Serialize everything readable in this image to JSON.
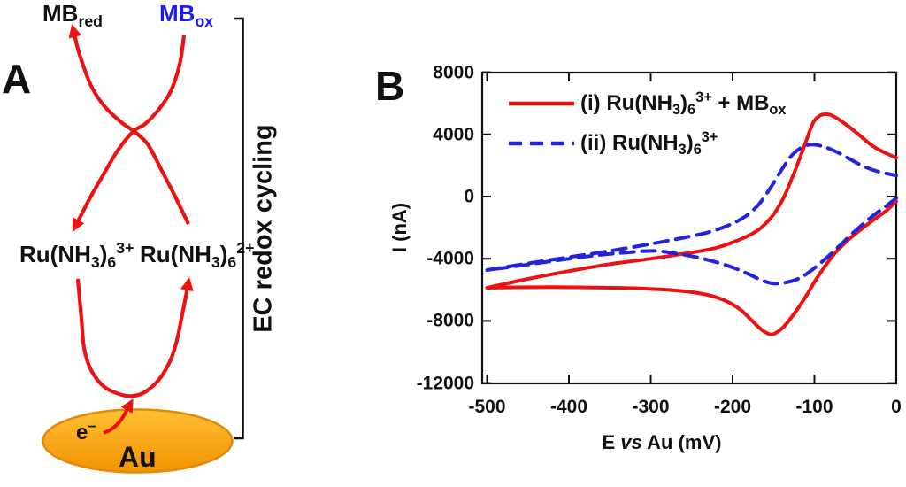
{
  "panel_a": {
    "label": "A",
    "mb_red": [
      [
        "MB",
        ""
      ],
      [
        "red",
        "sub"
      ]
    ],
    "mb_ox": [
      [
        "MB",
        ""
      ],
      [
        "ox",
        "sub"
      ]
    ],
    "ru_3plus": [
      [
        "Ru(NH",
        ""
      ],
      [
        "3",
        "sub"
      ],
      [
        ")",
        ""
      ],
      [
        "6",
        "sub"
      ],
      [
        "3+",
        "sup"
      ]
    ],
    "ru_2plus": [
      [
        "Ru(NH",
        ""
      ],
      [
        "3",
        "sub"
      ],
      [
        ")",
        ""
      ],
      [
        "6",
        "sub"
      ],
      [
        "2+",
        "sup"
      ]
    ],
    "electron": [
      [
        "e",
        ""
      ],
      [
        "−",
        "sup"
      ]
    ],
    "electrode": "Au",
    "bracket_label": "EC redox cycling",
    "colors": {
      "arrow_red": "#ee1111",
      "mb_ox_text": "#1b1bf0",
      "electrode_top": "#ffc033",
      "electrode_bottom": "#f29300",
      "electrode_stroke": "#e2880a"
    }
  },
  "panel_b": {
    "label": "B",
    "ylabel": "I (nA)",
    "xlabel": [
      [
        "E ",
        ""
      ],
      [
        "vs",
        "it"
      ],
      [
        " Au (mV)",
        ""
      ]
    ],
    "legend": [
      {
        "style": "solid",
        "color": "#ee1111",
        "text": [
          [
            "(i) Ru(NH",
            ""
          ],
          [
            "3",
            "sub"
          ],
          [
            ")",
            ""
          ],
          [
            "6",
            "sub"
          ],
          [
            "3+",
            "sup"
          ],
          [
            " + MB",
            ""
          ],
          [
            "ox",
            "sub"
          ]
        ]
      },
      {
        "style": "dashed",
        "color": "#2323dd",
        "text": [
          [
            "(ii) Ru(NH",
            ""
          ],
          [
            "3",
            "sub"
          ],
          [
            ")",
            ""
          ],
          [
            "6",
            "sub"
          ],
          [
            "3+",
            "sup"
          ]
        ]
      }
    ]
  },
  "chart_data": {
    "type": "line",
    "subtype": "cyclic-voltammogram",
    "title": "",
    "xlabel": "E vs Au (mV)",
    "ylabel": "I (nA)",
    "xlim": [
      -500,
      0
    ],
    "ylim": [
      -12000,
      8000
    ],
    "x_ticks": [
      -500,
      -400,
      -300,
      -200,
      -100,
      0
    ],
    "y_ticks": [
      8000,
      4000,
      0,
      -4000,
      -8000,
      -12000
    ],
    "grid": false,
    "legend_position": "inside top-left",
    "series": [
      {
        "name": "(i) Ru(NH3)6 3+ + MBox",
        "color": "#ee1111",
        "line": "solid",
        "anodic_peak": {
          "E_mV": -95,
          "I_nA": 5300
        },
        "cathodic_peak": {
          "E_mV": -152,
          "I_nA": -8850
        },
        "forward_scan": [
          [
            -500,
            -5870
          ],
          [
            -450,
            -5300
          ],
          [
            -400,
            -4800
          ],
          [
            -350,
            -4350
          ],
          [
            -300,
            -4000
          ],
          [
            -250,
            -3600
          ],
          [
            -220,
            -3300
          ],
          [
            -200,
            -2950
          ],
          [
            -180,
            -2500
          ],
          [
            -165,
            -2000
          ],
          [
            -150,
            -1150
          ],
          [
            -138,
            -100
          ],
          [
            -125,
            1500
          ],
          [
            -112,
            3300
          ],
          [
            -102,
            4700
          ],
          [
            -95,
            5150
          ],
          [
            -88,
            5300
          ],
          [
            -80,
            5250
          ],
          [
            -70,
            4950
          ],
          [
            -58,
            4500
          ],
          [
            -45,
            3950
          ],
          [
            -30,
            3300
          ],
          [
            -15,
            2850
          ],
          [
            0,
            2500
          ]
        ],
        "reverse_scan": [
          [
            0,
            -300
          ],
          [
            -12,
            -900
          ],
          [
            -25,
            -1400
          ],
          [
            -38,
            -1900
          ],
          [
            -50,
            -2400
          ],
          [
            -62,
            -2950
          ],
          [
            -75,
            -3650
          ],
          [
            -88,
            -4550
          ],
          [
            -100,
            -5500
          ],
          [
            -112,
            -6550
          ],
          [
            -125,
            -7550
          ],
          [
            -138,
            -8400
          ],
          [
            -148,
            -8800
          ],
          [
            -155,
            -8850
          ],
          [
            -165,
            -8550
          ],
          [
            -178,
            -7900
          ],
          [
            -190,
            -7300
          ],
          [
            -205,
            -6800
          ],
          [
            -225,
            -6400
          ],
          [
            -250,
            -6150
          ],
          [
            -280,
            -6000
          ],
          [
            -320,
            -5900
          ],
          [
            -370,
            -5850
          ],
          [
            -420,
            -5830
          ],
          [
            -460,
            -5840
          ],
          [
            -500,
            -5870
          ]
        ]
      },
      {
        "name": "(ii) Ru(NH3)6 3+",
        "color": "#2323dd",
        "line": "dashed",
        "anodic_peak": {
          "E_mV": -103,
          "I_nA": 3350
        },
        "cathodic_peak": {
          "E_mV": -145,
          "I_nA": -5600
        },
        "forward_scan": [
          [
            -500,
            -4730
          ],
          [
            -450,
            -4300
          ],
          [
            -400,
            -3900
          ],
          [
            -350,
            -3500
          ],
          [
            -300,
            -3050
          ],
          [
            -260,
            -2650
          ],
          [
            -230,
            -2300
          ],
          [
            -205,
            -1850
          ],
          [
            -185,
            -1300
          ],
          [
            -168,
            -500
          ],
          [
            -152,
            700
          ],
          [
            -138,
            1900
          ],
          [
            -125,
            2800
          ],
          [
            -112,
            3250
          ],
          [
            -103,
            3350
          ],
          [
            -95,
            3300
          ],
          [
            -85,
            3150
          ],
          [
            -72,
            2850
          ],
          [
            -58,
            2450
          ],
          [
            -42,
            2000
          ],
          [
            -25,
            1650
          ],
          [
            0,
            1350
          ]
        ],
        "reverse_scan": [
          [
            0,
            -100
          ],
          [
            -12,
            -600
          ],
          [
            -25,
            -1100
          ],
          [
            -38,
            -1650
          ],
          [
            -52,
            -2300
          ],
          [
            -65,
            -2950
          ],
          [
            -78,
            -3600
          ],
          [
            -92,
            -4250
          ],
          [
            -105,
            -4800
          ],
          [
            -118,
            -5250
          ],
          [
            -132,
            -5500
          ],
          [
            -145,
            -5600
          ],
          [
            -155,
            -5550
          ],
          [
            -168,
            -5300
          ],
          [
            -182,
            -4950
          ],
          [
            -198,
            -4600
          ],
          [
            -218,
            -4250
          ],
          [
            -240,
            -3950
          ],
          [
            -265,
            -3700
          ],
          [
            -295,
            -3500
          ],
          [
            -330,
            -3600
          ],
          [
            -370,
            -3800
          ],
          [
            -420,
            -4150
          ],
          [
            -460,
            -4450
          ],
          [
            -500,
            -4730
          ]
        ]
      }
    ]
  }
}
